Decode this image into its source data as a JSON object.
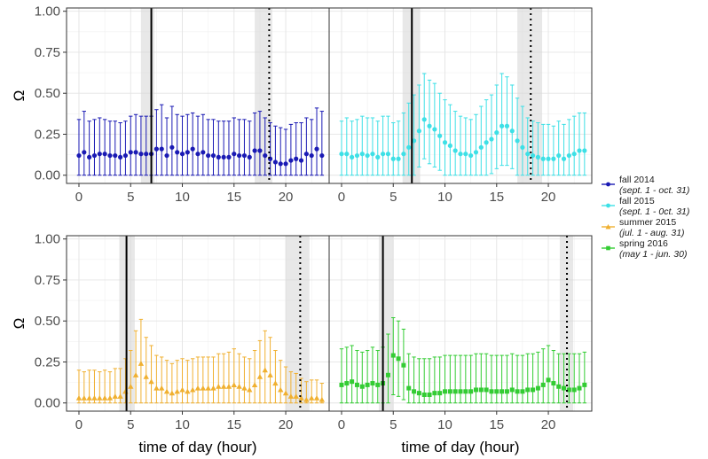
{
  "chart_data": {
    "type": "scatter",
    "layout": "2x2 facets with shared legend on the right",
    "shared_axes": {
      "xlabel": "time of day (hour)",
      "ylabel": "Ω",
      "xlim": [
        -1.2,
        24.2
      ],
      "ylim": [
        -0.05,
        1.02
      ],
      "xticks": [
        0,
        5,
        10,
        15,
        20
      ],
      "yticks": [
        0.0,
        0.25,
        0.5,
        0.75,
        1.0
      ],
      "ytick_labels": [
        "0.00",
        "0.25",
        "0.50",
        "0.75",
        "1.00"
      ],
      "grid": true
    },
    "legend": {
      "placement": "right",
      "entries": [
        {
          "name": "fall 2014",
          "sub": "(sept. 1 - oct. 31)",
          "color": "#1a1ab4",
          "marker": "circle"
        },
        {
          "name": "fall 2015",
          "sub": "(sept. 1 - 0ct. 31)",
          "color": "#3de0e6",
          "marker": "circle"
        },
        {
          "name": "summer 2015",
          "sub": "(jul. 1 - aug. 31)",
          "color": "#f0b030",
          "marker": "triangle"
        },
        {
          "name": "spring 2016",
          "sub": "(may 1 - jun. 30)",
          "color": "#33cc33",
          "marker": "square"
        }
      ]
    },
    "panels": [
      {
        "series": "fall 2014",
        "color": "#1a1ab4",
        "marker": "circle",
        "sunrise_band": [
          6.0,
          7.3
        ],
        "sunrise": 7.0,
        "sunset_band": [
          17.0,
          18.7
        ],
        "sunset": 18.4,
        "x": [
          0,
          0.5,
          1,
          1.5,
          2,
          2.5,
          3,
          3.5,
          4,
          4.5,
          5,
          5.5,
          6,
          6.5,
          7,
          7.5,
          8,
          8.5,
          9,
          9.5,
          10,
          10.5,
          11,
          11.5,
          12,
          12.5,
          13,
          13.5,
          14,
          14.5,
          15,
          15.5,
          16,
          16.5,
          17,
          17.5,
          18,
          18.5,
          19,
          19.5,
          20,
          20.5,
          21,
          21.5,
          22,
          22.5,
          23,
          23.5
        ],
        "y": [
          0.12,
          0.14,
          0.11,
          0.12,
          0.13,
          0.13,
          0.12,
          0.12,
          0.11,
          0.12,
          0.14,
          0.14,
          0.13,
          0.13,
          0.13,
          0.16,
          0.16,
          0.12,
          0.17,
          0.14,
          0.13,
          0.14,
          0.16,
          0.13,
          0.14,
          0.12,
          0.12,
          0.11,
          0.11,
          0.11,
          0.13,
          0.12,
          0.12,
          0.11,
          0.15,
          0.15,
          0.12,
          0.1,
          0.08,
          0.07,
          0.07,
          0.09,
          0.1,
          0.09,
          0.13,
          0.12,
          0.16,
          0.12
        ],
        "upper": [
          0.34,
          0.39,
          0.33,
          0.34,
          0.35,
          0.34,
          0.33,
          0.33,
          0.32,
          0.33,
          0.36,
          0.37,
          0.36,
          0.36,
          0.36,
          0.4,
          0.43,
          0.35,
          0.42,
          0.37,
          0.36,
          0.37,
          0.38,
          0.36,
          0.37,
          0.34,
          0.34,
          0.33,
          0.33,
          0.33,
          0.35,
          0.34,
          0.34,
          0.33,
          0.38,
          0.39,
          0.35,
          0.32,
          0.3,
          0.29,
          0.28,
          0.31,
          0.32,
          0.32,
          0.35,
          0.34,
          0.41,
          0.39
        ],
        "lower": [
          0,
          0,
          0,
          0,
          0,
          0,
          0,
          0,
          0,
          0,
          0,
          0,
          0,
          0,
          0,
          0,
          0,
          0,
          0,
          0,
          0,
          0,
          0,
          0,
          0,
          0,
          0,
          0,
          0,
          0,
          0,
          0,
          0,
          0,
          0,
          0,
          0,
          0,
          0,
          0,
          0,
          0,
          0,
          0,
          0,
          0,
          0,
          0
        ]
      },
      {
        "series": "fall 2015",
        "color": "#3de0e6",
        "marker": "circle",
        "sunrise_band": [
          5.9,
          7.6
        ],
        "sunrise": 6.8,
        "sunset_band": [
          17.0,
          19.4
        ],
        "sunset": 18.3,
        "x": [
          0,
          0.5,
          1,
          1.5,
          2,
          2.5,
          3,
          3.5,
          4,
          4.5,
          5,
          5.5,
          6,
          6.5,
          7,
          7.5,
          8,
          8.5,
          9,
          9.5,
          10,
          10.5,
          11,
          11.5,
          12,
          12.5,
          13,
          13.5,
          14,
          14.5,
          15,
          15.5,
          16,
          16.5,
          17,
          17.5,
          18,
          18.5,
          19,
          19.5,
          20,
          20.5,
          21,
          21.5,
          22,
          22.5,
          23,
          23.5
        ],
        "y": [
          0.13,
          0.13,
          0.11,
          0.12,
          0.13,
          0.12,
          0.13,
          0.11,
          0.13,
          0.13,
          0.1,
          0.1,
          0.13,
          0.17,
          0.21,
          0.27,
          0.34,
          0.3,
          0.28,
          0.24,
          0.2,
          0.18,
          0.15,
          0.13,
          0.13,
          0.12,
          0.14,
          0.17,
          0.2,
          0.22,
          0.26,
          0.3,
          0.3,
          0.27,
          0.21,
          0.17,
          0.13,
          0.12,
          0.11,
          0.1,
          0.1,
          0.1,
          0.12,
          0.1,
          0.12,
          0.13,
          0.15,
          0.15
        ],
        "upper": [
          0.33,
          0.35,
          0.33,
          0.34,
          0.36,
          0.35,
          0.35,
          0.33,
          0.36,
          0.36,
          0.32,
          0.33,
          0.38,
          0.44,
          0.49,
          0.55,
          0.62,
          0.58,
          0.56,
          0.5,
          0.46,
          0.43,
          0.39,
          0.36,
          0.35,
          0.34,
          0.37,
          0.42,
          0.46,
          0.49,
          0.55,
          0.62,
          0.6,
          0.55,
          0.47,
          0.42,
          0.35,
          0.33,
          0.32,
          0.31,
          0.31,
          0.3,
          0.33,
          0.31,
          0.34,
          0.36,
          0.38,
          0.38
        ],
        "lower": [
          0,
          0,
          0,
          0,
          0,
          0,
          0,
          0,
          0,
          0,
          0,
          0,
          0,
          0,
          0,
          0.05,
          0.1,
          0.07,
          0.05,
          0.03,
          0,
          0,
          0,
          0,
          0,
          0,
          0,
          0,
          0,
          0.01,
          0.04,
          0.06,
          0.06,
          0.04,
          0,
          0,
          0,
          0,
          0,
          0,
          0,
          0,
          0,
          0,
          0,
          0,
          0,
          0
        ]
      },
      {
        "series": "summer 2015",
        "color": "#f0b030",
        "marker": "triangle",
        "sunrise_band": [
          3.9,
          5.4
        ],
        "sunrise": 4.6,
        "sunset_band": [
          20.0,
          22.3
        ],
        "sunset": 21.4,
        "x": [
          0,
          0.5,
          1,
          1.5,
          2,
          2.5,
          3,
          3.5,
          4,
          4.5,
          5,
          5.5,
          6,
          6.5,
          7,
          7.5,
          8,
          8.5,
          9,
          9.5,
          10,
          10.5,
          11,
          11.5,
          12,
          12.5,
          13,
          13.5,
          14,
          14.5,
          15,
          15.5,
          16,
          16.5,
          17,
          17.5,
          18,
          18.5,
          19,
          19.5,
          20,
          20.5,
          21,
          21.5,
          22,
          22.5,
          23,
          23.5
        ],
        "y": [
          0.03,
          0.03,
          0.03,
          0.03,
          0.03,
          0.03,
          0.03,
          0.04,
          0.04,
          0.07,
          0.1,
          0.17,
          0.24,
          0.16,
          0.13,
          0.09,
          0.09,
          0.07,
          0.06,
          0.07,
          0.08,
          0.07,
          0.08,
          0.09,
          0.09,
          0.09,
          0.09,
          0.1,
          0.1,
          0.1,
          0.11,
          0.1,
          0.09,
          0.08,
          0.11,
          0.16,
          0.2,
          0.17,
          0.12,
          0.08,
          0.06,
          0.04,
          0.04,
          0.03,
          0.02,
          0.03,
          0.03,
          0.02
        ],
        "upper": [
          0.2,
          0.19,
          0.2,
          0.2,
          0.19,
          0.2,
          0.19,
          0.21,
          0.21,
          0.27,
          0.32,
          0.44,
          0.51,
          0.4,
          0.35,
          0.29,
          0.28,
          0.26,
          0.24,
          0.26,
          0.27,
          0.26,
          0.27,
          0.28,
          0.28,
          0.28,
          0.28,
          0.3,
          0.3,
          0.31,
          0.33,
          0.3,
          0.28,
          0.27,
          0.32,
          0.38,
          0.44,
          0.4,
          0.32,
          0.26,
          0.22,
          0.19,
          0.18,
          0.15,
          0.13,
          0.14,
          0.14,
          0.12
        ],
        "lower": [
          0,
          0,
          0,
          0,
          0,
          0,
          0,
          0,
          0,
          0,
          0,
          0,
          0,
          0,
          0,
          0,
          0,
          0,
          0,
          0,
          0,
          0,
          0,
          0,
          0,
          0,
          0,
          0,
          0,
          0,
          0,
          0,
          0,
          0,
          0,
          0,
          0,
          0,
          0,
          0,
          0,
          0,
          0,
          0,
          0,
          0,
          0,
          0
        ]
      },
      {
        "series": "spring 2016",
        "color": "#33cc33",
        "marker": "square",
        "sunrise_band": [
          3.6,
          5.0
        ],
        "sunrise": 4.0,
        "sunset_band": [
          21.1,
          22.4
        ],
        "sunset": 21.8,
        "x": [
          0,
          0.5,
          1,
          1.5,
          2,
          2.5,
          3,
          3.5,
          4,
          4.5,
          5,
          5.5,
          6,
          6.5,
          7,
          7.5,
          8,
          8.5,
          9,
          9.5,
          10,
          10.5,
          11,
          11.5,
          12,
          12.5,
          13,
          13.5,
          14,
          14.5,
          15,
          15.5,
          16,
          16.5,
          17,
          17.5,
          18,
          18.5,
          19,
          19.5,
          20,
          20.5,
          21,
          21.5,
          22,
          22.5,
          23,
          23.5
        ],
        "y": [
          0.11,
          0.12,
          0.13,
          0.11,
          0.1,
          0.11,
          0.12,
          0.11,
          0.12,
          0.17,
          0.29,
          0.27,
          0.23,
          0.09,
          0.07,
          0.06,
          0.05,
          0.05,
          0.06,
          0.06,
          0.07,
          0.07,
          0.07,
          0.07,
          0.07,
          0.07,
          0.08,
          0.08,
          0.08,
          0.07,
          0.07,
          0.07,
          0.07,
          0.08,
          0.07,
          0.07,
          0.08,
          0.08,
          0.09,
          0.11,
          0.14,
          0.12,
          0.1,
          0.09,
          0.08,
          0.08,
          0.09,
          0.11
        ],
        "upper": [
          0.33,
          0.34,
          0.35,
          0.32,
          0.31,
          0.32,
          0.34,
          0.32,
          0.34,
          0.42,
          0.52,
          0.5,
          0.45,
          0.3,
          0.28,
          0.27,
          0.27,
          0.27,
          0.28,
          0.28,
          0.29,
          0.29,
          0.29,
          0.29,
          0.29,
          0.29,
          0.3,
          0.3,
          0.3,
          0.29,
          0.29,
          0.29,
          0.29,
          0.3,
          0.29,
          0.29,
          0.3,
          0.3,
          0.31,
          0.33,
          0.35,
          0.32,
          0.3,
          0.3,
          0.3,
          0.3,
          0.3,
          0.31
        ],
        "lower": [
          0,
          0,
          0,
          0,
          0,
          0,
          0,
          0,
          0,
          0,
          0.05,
          0.04,
          0.02,
          0,
          0,
          0,
          0,
          0,
          0,
          0,
          0,
          0,
          0,
          0,
          0,
          0,
          0,
          0,
          0,
          0,
          0,
          0,
          0,
          0,
          0,
          0,
          0,
          0,
          0,
          0,
          0,
          0,
          0,
          0,
          0,
          0,
          0,
          0
        ]
      }
    ]
  }
}
